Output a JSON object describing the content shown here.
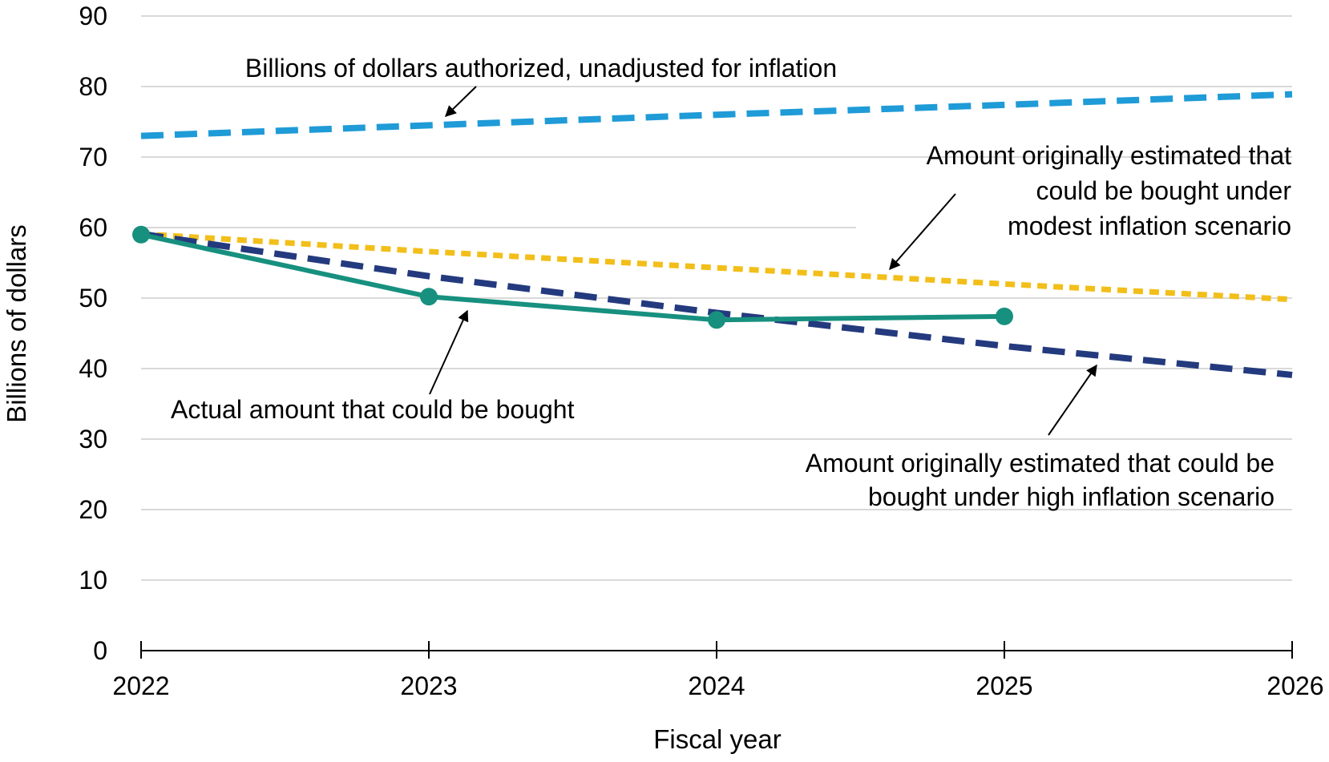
{
  "chart_data": {
    "type": "line",
    "xlabel": "Fiscal year",
    "ylabel": "Billions of dollars",
    "x": [
      2022,
      2023,
      2024,
      2025,
      2026
    ],
    "x_tick_labels": [
      "2022",
      "2023",
      "2024",
      "2025",
      "2026"
    ],
    "ylim": [
      0,
      90
    ],
    "y_ticks": [
      0,
      10,
      20,
      30,
      40,
      50,
      60,
      70,
      80,
      90
    ],
    "y_tick_labels": [
      "0",
      "10",
      "20",
      "30",
      "40",
      "50",
      "60",
      "70",
      "80",
      "90"
    ],
    "grid": true,
    "series": [
      {
        "key": "authorized",
        "color": "#1f9bd7",
        "style": "dashed",
        "x": [
          2022,
          2023,
          2024,
          2025,
          2026
        ],
        "values": [
          73.0,
          74.5,
          76.0,
          77.4,
          78.9
        ],
        "annotation": [
          "Billions of dollars authorized, unadjusted for inflation"
        ]
      },
      {
        "key": "modest",
        "color": "#f2bf1a",
        "style": "dotted",
        "x": [
          2022,
          2023,
          2024,
          2025,
          2026
        ],
        "values": [
          59.1,
          56.6,
          54.3,
          52.0,
          49.8
        ],
        "annotation": [
          "Amount originally estimated that",
          "could be bought under",
          "modest inflation scenario"
        ]
      },
      {
        "key": "high",
        "color": "#243a7e",
        "style": "dashed",
        "x": [
          2022,
          2023,
          2024,
          2025,
          2026
        ],
        "values": [
          59.1,
          53.1,
          47.9,
          43.2,
          39.1
        ],
        "annotation": [
          "Amount originally estimated that could be",
          "bought under high inflation scenario"
        ]
      },
      {
        "key": "actual",
        "color": "#17907f",
        "style": "solid",
        "x": [
          2022,
          2023,
          2024,
          2025
        ],
        "values": [
          59.0,
          50.2,
          46.9,
          47.4
        ],
        "annotation": [
          "Actual amount that could be bought"
        ]
      }
    ]
  }
}
